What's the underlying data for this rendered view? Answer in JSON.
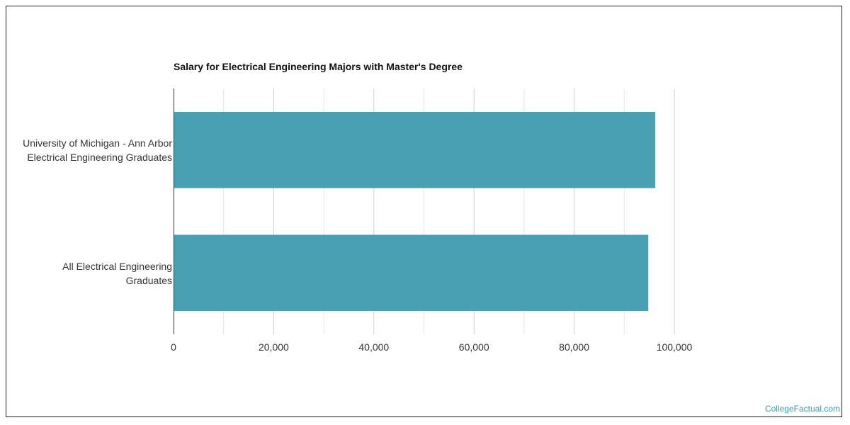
{
  "chart_data": {
    "type": "bar",
    "orientation": "horizontal",
    "title": "Salary for Electrical Engineering Majors with Master's Degree",
    "categories": [
      [
        "University of Michigan - Ann Arbor",
        "Electrical Engineering Graduates"
      ],
      [
        "All Electrical Engineering",
        "Graduates"
      ]
    ],
    "values": [
      96200,
      94800
    ],
    "xlim": [
      0,
      100000
    ],
    "xticks": [
      "0",
      "20,000",
      "40,000",
      "60,000",
      "80,000",
      "100,000"
    ],
    "xtick_values": [
      0,
      20000,
      40000,
      60000,
      80000,
      100000
    ],
    "grid": true,
    "bar_color": "#4aa0b3"
  },
  "watermark": "CollegeFactual.com"
}
